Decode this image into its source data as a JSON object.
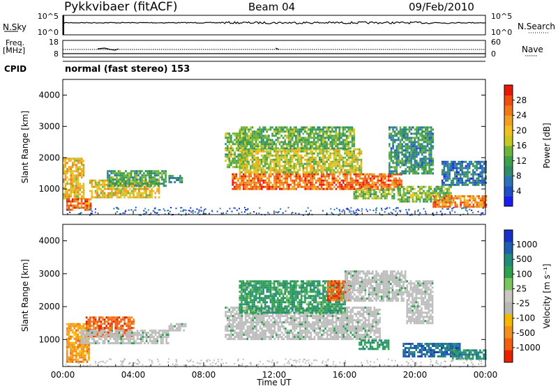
{
  "header": {
    "station": "Pykkvibaer (fitACF)",
    "beam": "Beam 04",
    "date": "09/Feb/2010",
    "mode": "normal (fast stereo) 153",
    "cpid": "CPID"
  },
  "side_labels": {
    "nsky": "N.Sky",
    "freq_line1": "Freq.",
    "freq_line2": "[MHz]",
    "nsearch": "N.Search",
    "nave": "Nave"
  },
  "colors": {
    "noise_line": "#000000",
    "axes": "#000000",
    "ground_scatter": "#bdbdbd"
  },
  "chart_data": [
    {
      "type": "line",
      "panel": "noise",
      "left_ticks": [
        "10^5",
        "10^0"
      ],
      "right_ticks": [
        "10^5",
        "10^0"
      ],
      "series": [
        {
          "name": "N.Sky",
          "values_level": 0.2
        },
        {
          "name": "N.Search",
          "values_level": 0.25
        }
      ]
    },
    {
      "type": "line",
      "panel": "frequency",
      "left_ticks": [
        "18",
        "8"
      ],
      "right_ticks": [
        "60",
        "0"
      ],
      "series": [
        {
          "name": "Freq.",
          "values_level": 0.55
        },
        {
          "name": "Nave",
          "values_level": 0.88
        }
      ]
    },
    {
      "type": "heatmap",
      "panel": "power",
      "ylabel": "Slant Range [km]",
      "yticks": [
        "4000",
        "3000",
        "2000",
        "1000"
      ],
      "ylim": [
        180,
        4500
      ],
      "xlim": [
        0,
        24
      ],
      "colorbar": {
        "label": "Power [dB]",
        "ticks": [
          "28",
          "24",
          "20",
          "16",
          "12",
          "8",
          "4"
        ],
        "colors": [
          "#1c1cf0",
          "#1e4fc8",
          "#2a74b6",
          "#2e8c6a",
          "#3fa04a",
          "#6fb43a",
          "#c8c820",
          "#f0c020",
          "#f0a020",
          "#f07818",
          "#f04c10",
          "#e81808"
        ]
      },
      "bands": [
        {
          "t0": 0.0,
          "t1": 1.2,
          "r0": 700,
          "r1": 2000,
          "v": 0.65
        },
        {
          "t0": 0.2,
          "t1": 1.6,
          "r0": 300,
          "r1": 700,
          "v": 0.85
        },
        {
          "t0": 1.5,
          "t1": 5.5,
          "r0": 700,
          "r1": 1300,
          "v": 0.62
        },
        {
          "t0": 2.5,
          "t1": 5.8,
          "r0": 1100,
          "r1": 1600,
          "v": 0.35
        },
        {
          "t0": 6.0,
          "t1": 6.8,
          "r0": 1200,
          "r1": 1450,
          "v": 0.3
        },
        {
          "t0": 9.2,
          "t1": 10.5,
          "r0": 1700,
          "r1": 2800,
          "v": 0.45
        },
        {
          "t0": 9.6,
          "t1": 19.2,
          "r0": 1000,
          "r1": 1500,
          "v": 0.85
        },
        {
          "t0": 10.0,
          "t1": 17.0,
          "r0": 1500,
          "r1": 2300,
          "v": 0.55
        },
        {
          "t0": 10.0,
          "t1": 16.5,
          "r0": 2300,
          "r1": 3000,
          "v": 0.4
        },
        {
          "t0": 16.5,
          "t1": 18.8,
          "r0": 700,
          "r1": 1000,
          "v": 0.45
        },
        {
          "t0": 18.5,
          "t1": 21.0,
          "r0": 1500,
          "r1": 3000,
          "v": 0.3
        },
        {
          "t0": 19.0,
          "t1": 22.0,
          "r0": 600,
          "r1": 1100,
          "v": 0.45
        },
        {
          "t0": 21.0,
          "t1": 24.0,
          "r0": 400,
          "r1": 800,
          "v": 0.8
        },
        {
          "t0": 21.5,
          "t1": 24.0,
          "r0": 1100,
          "r1": 1900,
          "v": 0.2
        }
      ]
    },
    {
      "type": "heatmap",
      "panel": "velocity",
      "ylabel": "Slant Range [km]",
      "yticks": [
        "4000",
        "3000",
        "2000",
        "1000"
      ],
      "ylim": [
        180,
        4500
      ],
      "xlim": [
        0,
        24
      ],
      "xticks": [
        "00:00",
        "04:00",
        "08:00",
        "12:00",
        "16:00",
        "20:00",
        "00:00"
      ],
      "xlabel": "Time UT",
      "colorbar": {
        "label": "Velocity [m s⁻¹]",
        "ticks": [
          "1000",
          "500",
          "100",
          "25",
          "-25",
          "-100",
          "-500",
          "-1000"
        ],
        "colors": [
          "#1a30c8",
          "#1f5fb0",
          "#238a7a",
          "#2fa050",
          "#7cc460",
          "#c8c8c0",
          "#b8b8b0",
          "#f5b800",
          "#f09020",
          "#f06010",
          "#e82000"
        ]
      },
      "bands": [
        {
          "t0": 0.2,
          "t1": 1.5,
          "r0": 300,
          "r1": 1500,
          "v": -0.55
        },
        {
          "t0": 1.3,
          "t1": 4.0,
          "r0": 1100,
          "r1": 1700,
          "v": -0.8
        },
        {
          "t0": 1.0,
          "t1": 6.0,
          "r0": 900,
          "r1": 1300,
          "v": 0.0
        },
        {
          "t0": 6.0,
          "t1": 7.0,
          "r0": 1300,
          "r1": 1500,
          "v": 0.0
        },
        {
          "t0": 9.2,
          "t1": 18.0,
          "r0": 1000,
          "r1": 2000,
          "v": 0.0
        },
        {
          "t0": 10.0,
          "t1": 16.0,
          "r0": 1800,
          "r1": 2800,
          "v": 0.45
        },
        {
          "t0": 15.0,
          "t1": 16.3,
          "r0": 2200,
          "r1": 2800,
          "v": -0.8
        },
        {
          "t0": 16.0,
          "t1": 19.5,
          "r0": 2200,
          "r1": 3100,
          "v": 0.0
        },
        {
          "t0": 16.8,
          "t1": 18.5,
          "r0": 700,
          "r1": 1000,
          "v": 0.5
        },
        {
          "t0": 19.5,
          "t1": 21.0,
          "r0": 1500,
          "r1": 2800,
          "v": 0.0
        },
        {
          "t0": 19.3,
          "t1": 22.5,
          "r0": 500,
          "r1": 900,
          "v": 0.75
        },
        {
          "t0": 22.0,
          "t1": 24.0,
          "r0": 400,
          "r1": 700,
          "v": 0.55
        }
      ]
    }
  ]
}
